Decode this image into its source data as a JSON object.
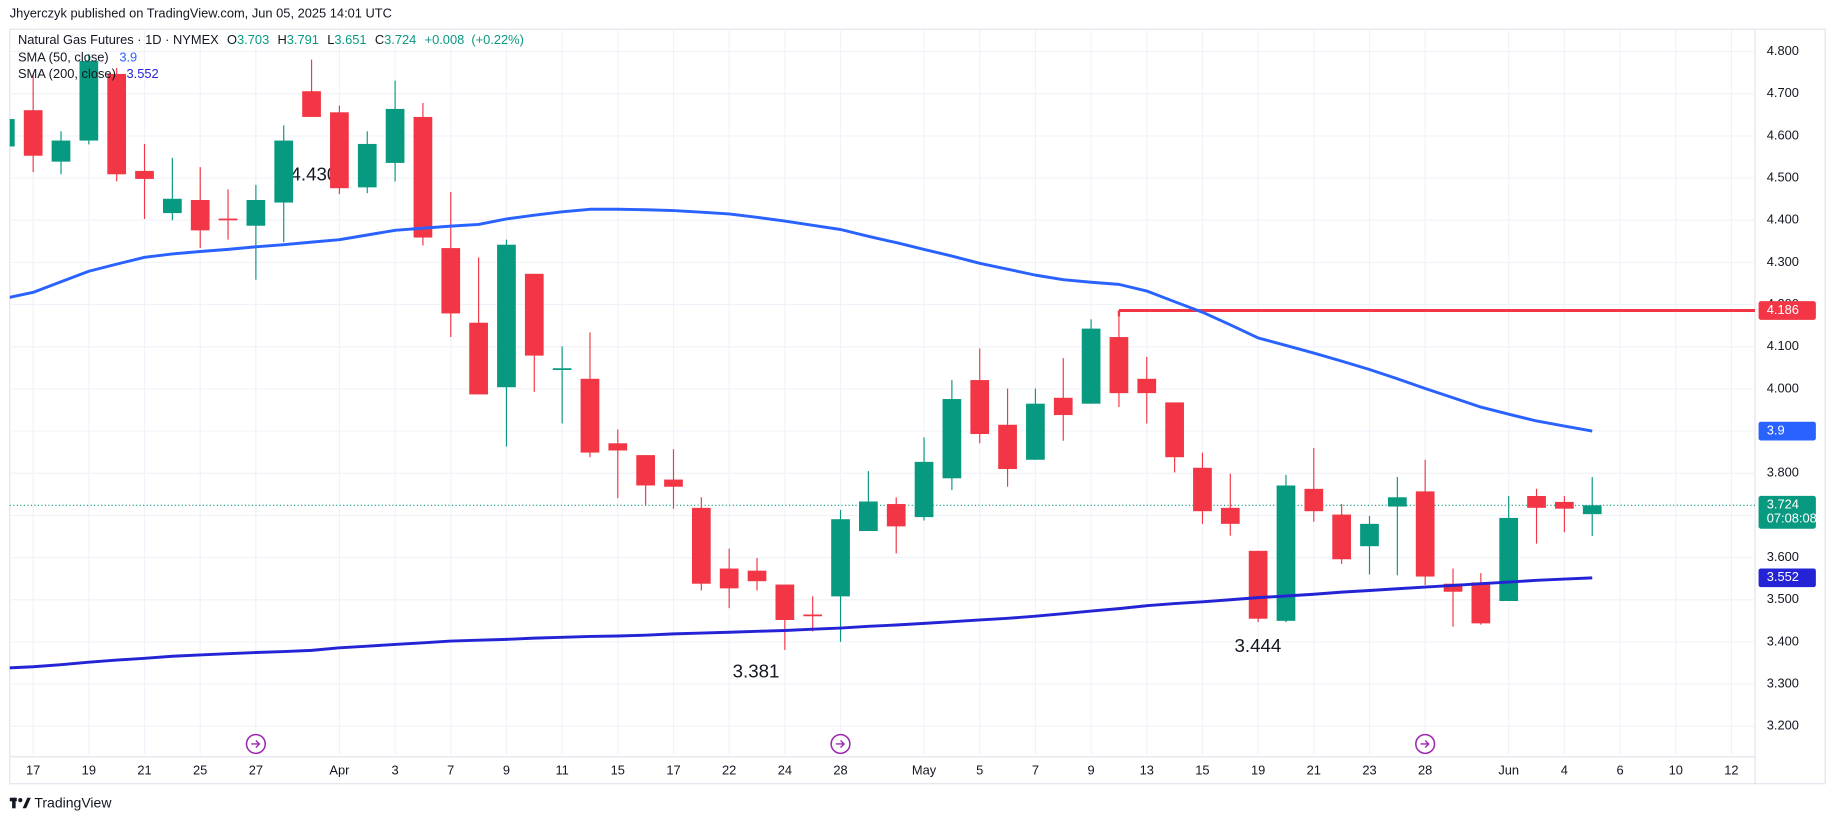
{
  "chart_data": {
    "type": "candlestick",
    "published": "Jhyerczyk published on TradingView.com, Jun 05, 2025 14:01 UTC",
    "symbol": "Natural Gas Futures · 1D · NYMEX",
    "header_fields": [
      "O",
      "H",
      "L",
      "C"
    ],
    "change": {
      "value": 0.008,
      "label": "+0.008"
    },
    "change_pct": {
      "value": 0.22,
      "label": "(+0.22%)"
    },
    "countdown": "07:08:08",
    "brand": "TradingView",
    "up_color": "#089981",
    "down_color": "#f23645",
    "categories": [
      null,
      "17",
      null,
      "19",
      null,
      "21",
      null,
      "25",
      null,
      "27",
      null,
      null,
      "Apr",
      null,
      "3",
      null,
      "7",
      null,
      "9",
      null,
      "11",
      null,
      "15",
      null,
      "17",
      null,
      "22",
      null,
      "24",
      null,
      "28",
      null,
      null,
      "May",
      null,
      "5",
      null,
      "7",
      null,
      "9",
      null,
      "13",
      null,
      "15",
      null,
      "19",
      null,
      "21",
      null,
      "23",
      null,
      "28",
      null,
      null,
      "Jun",
      null,
      "4",
      null,
      "6",
      null,
      "10",
      null,
      "12"
    ],
    "open": [
      4.575,
      4.661,
      4.539,
      4.589,
      4.747,
      4.517,
      4.417,
      4.448,
      4.404,
      4.387,
      4.442,
      4.706,
      4.656,
      4.478,
      4.536,
      4.645,
      4.334,
      4.157,
      4.004,
      4.273,
      4.046,
      4.024,
      3.871,
      3.843,
      3.785,
      3.718,
      3.574,
      3.569,
      3.536,
      3.465,
      3.508,
      3.663,
      3.727,
      3.696,
      3.788,
      4.021,
      3.915,
      3.832,
      3.979,
      3.965,
      4.123,
      4.024,
      3.968,
      3.813,
      3.718,
      3.616,
      3.45,
      3.763,
      3.702,
      3.627,
      3.721,
      3.757,
      3.538,
      3.541,
      3.497,
      3.746,
      3.732,
      3.703,
      null,
      null,
      null,
      null,
      null
    ],
    "high": [
      4.66,
      4.747,
      4.611,
      4.794,
      4.761,
      4.581,
      4.548,
      4.526,
      4.473,
      4.484,
      4.625,
      4.781,
      4.672,
      4.611,
      4.731,
      4.678,
      4.467,
      4.312,
      4.354,
      4.273,
      4.101,
      4.134,
      3.904,
      3.843,
      3.857,
      3.743,
      3.621,
      3.599,
      3.536,
      3.508,
      3.713,
      3.805,
      3.743,
      3.885,
      4.021,
      4.096,
      4.001,
      4.001,
      4.073,
      4.165,
      4.186,
      4.076,
      3.968,
      3.849,
      3.799,
      3.616,
      3.796,
      3.86,
      3.727,
      3.699,
      3.791,
      3.832,
      3.574,
      3.563,
      3.746,
      3.763,
      3.746,
      3.791,
      null,
      null,
      null,
      null,
      null
    ],
    "low": [
      4.57,
      4.514,
      4.509,
      4.58,
      4.492,
      4.403,
      4.4,
      4.334,
      4.354,
      4.259,
      4.348,
      4.645,
      4.462,
      4.464,
      4.492,
      4.34,
      4.123,
      3.987,
      3.863,
      3.993,
      3.918,
      3.838,
      3.741,
      3.724,
      3.716,
      3.522,
      3.48,
      3.522,
      3.381,
      3.425,
      3.4,
      3.663,
      3.61,
      3.688,
      3.76,
      3.871,
      3.768,
      3.832,
      3.877,
      3.965,
      3.957,
      3.918,
      3.802,
      3.68,
      3.652,
      3.447,
      3.447,
      3.685,
      3.585,
      3.56,
      3.558,
      3.535,
      3.436,
      3.441,
      3.497,
      3.633,
      3.66,
      3.651,
      null,
      null,
      null,
      null,
      null
    ],
    "close": [
      4.64,
      4.553,
      4.589,
      4.778,
      4.509,
      4.498,
      4.451,
      4.376,
      4.401,
      4.448,
      4.589,
      4.645,
      4.476,
      4.581,
      4.664,
      4.359,
      4.179,
      3.987,
      4.342,
      4.079,
      4.049,
      3.849,
      3.854,
      3.771,
      3.768,
      3.538,
      3.527,
      3.544,
      3.452,
      3.463,
      3.691,
      3.733,
      3.674,
      3.827,
      3.976,
      3.893,
      3.81,
      3.965,
      3.938,
      4.143,
      3.99,
      3.99,
      3.838,
      3.71,
      3.68,
      3.455,
      3.771,
      3.71,
      3.596,
      3.68,
      3.743,
      3.555,
      3.519,
      3.444,
      3.694,
      3.718,
      3.716,
      3.724,
      null,
      null,
      null,
      null,
      null
    ],
    "series": [
      {
        "name": "SMA (50, close)",
        "color": "#2962ff",
        "values": [
          4.215,
          4.229,
          4.254,
          4.279,
          4.296,
          4.312,
          4.32,
          4.326,
          4.331,
          4.337,
          4.342,
          4.348,
          4.354,
          4.365,
          4.376,
          4.381,
          4.386,
          4.39,
          4.403,
          4.412,
          4.42,
          4.426,
          4.426,
          4.425,
          4.423,
          4.419,
          4.415,
          4.407,
          4.398,
          4.388,
          4.378,
          4.362,
          4.347,
          4.331,
          4.315,
          4.298,
          4.284,
          4.27,
          4.259,
          4.253,
          4.248,
          4.232,
          4.207,
          4.182,
          4.152,
          4.121,
          4.103,
          4.085,
          4.066,
          4.046,
          4.024,
          4.001,
          3.979,
          3.957,
          3.94,
          3.924,
          3.912,
          3.9,
          null,
          null,
          null,
          null,
          null
        ]
      },
      {
        "name": "SMA (200, close)",
        "color": "#2424d6",
        "values": [
          3.338,
          3.341,
          3.346,
          3.352,
          3.357,
          3.361,
          3.366,
          3.369,
          3.372,
          3.375,
          3.377,
          3.38,
          3.386,
          3.39,
          3.394,
          3.398,
          3.402,
          3.404,
          3.406,
          3.409,
          3.411,
          3.413,
          3.414,
          3.416,
          3.419,
          3.421,
          3.423,
          3.425,
          3.427,
          3.43,
          3.433,
          3.437,
          3.44,
          3.444,
          3.448,
          3.452,
          3.456,
          3.461,
          3.467,
          3.473,
          3.479,
          3.486,
          3.491,
          3.495,
          3.5,
          3.505,
          3.509,
          3.513,
          3.518,
          3.522,
          3.526,
          3.53,
          3.534,
          3.538,
          3.542,
          3.546,
          3.549,
          3.552,
          null,
          null,
          null,
          null,
          null
        ]
      }
    ],
    "resistance": 4.186,
    "resistance_color": "#f23645",
    "annotations": [
      {
        "value": 4.43,
        "label": "4.430"
      },
      3.381,
      3.444
    ],
    "ylim": [
      3.133,
      4.853
    ],
    "yticks": [
      {
        "value": 3.2,
        "label": "3.200"
      },
      {
        "value": 3.3,
        "label": "3.300"
      },
      {
        "value": 3.4,
        "label": "3.400"
      },
      {
        "value": 3.5,
        "label": "3.500"
      },
      {
        "value": 3.6,
        "label": "3.600"
      },
      {
        "value": 3.7,
        "label": "3.700"
      },
      {
        "value": 3.8,
        "label": "3.800"
      },
      {
        "value": 3.9,
        "label": "3.900"
      },
      {
        "value": 4.0,
        "label": "4.000"
      },
      {
        "value": 4.1,
        "label": "4.100"
      },
      {
        "value": 4.2,
        "label": "4.200"
      },
      {
        "value": 4.3,
        "label": "4.300"
      },
      {
        "value": 4.4,
        "label": "4.400"
      },
      {
        "value": 4.5,
        "label": "4.500"
      },
      {
        "value": 4.6,
        "label": "4.600"
      },
      {
        "value": 4.7,
        "label": "4.700"
      },
      {
        "value": 4.8,
        "label": "4.800"
      }
    ],
    "grid": true
  }
}
